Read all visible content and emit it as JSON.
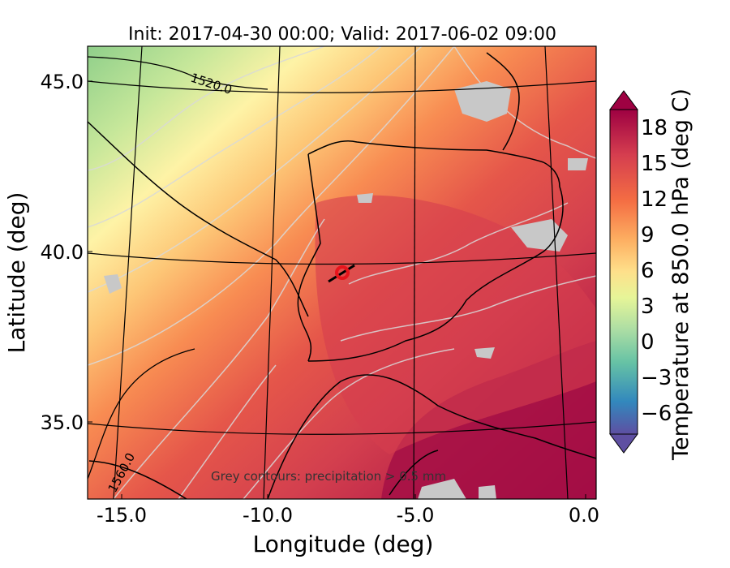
{
  "title": "Init: 2017-04-30 00:00; Valid: 2017-06-02 09:00",
  "xlabel": "Longitude (deg)",
  "ylabel": "Latitude (deg)",
  "x_ticks": [
    "-15.0",
    "-10.0",
    "-5.0",
    "0.0"
  ],
  "y_ticks": [
    "45.0",
    "40.0",
    "35.0"
  ],
  "colorbar": {
    "label": "Temperature at 850.0 hPa (deg C)",
    "ticks": [
      "18",
      "15",
      "12",
      "9",
      "6",
      "3",
      "0",
      "−3",
      "−6"
    ],
    "colormap": "Spectral_r",
    "range": [
      -8,
      20
    ],
    "extend": "both"
  },
  "contour_labels": [
    "1520.0",
    "1560.0"
  ],
  "annotation": "Grey contours: precipitation > 0.5 mm",
  "marker": {
    "color": "#e8141c",
    "shape": "circle"
  },
  "map": {
    "lon_range": [
      -16,
      0.2
    ],
    "lat_range": [
      32.5,
      46
    ],
    "colors": {
      "hot": "#a50f45",
      "warm": "#d6404e",
      "mild": "#f67f4b",
      "cool": "#fee08b",
      "cold": "#a9dc9d",
      "precip": "#c8c8c8",
      "coast": "#000000"
    }
  }
}
